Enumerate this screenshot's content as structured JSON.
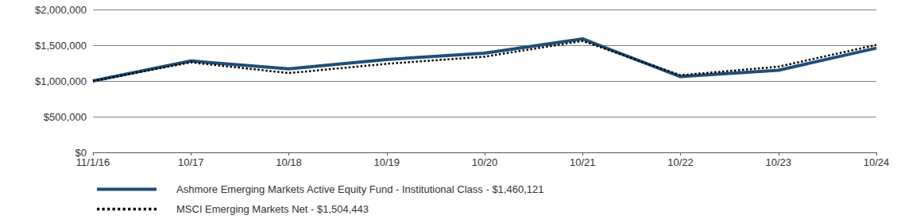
{
  "chart_data": {
    "type": "line",
    "categories": [
      "11/1/16",
      "10/17",
      "10/18",
      "10/19",
      "10/20",
      "10/21",
      "10/22",
      "10/23",
      "10/24"
    ],
    "series": [
      {
        "name": "Ashmore Emerging Markets Active Equity Fund - Institutional Class - $1,460,121",
        "color": "#1f4e79",
        "line_style": "solid",
        "marker": "none",
        "values": [
          1000000,
          1280000,
          1170000,
          1300000,
          1390000,
          1590000,
          1060000,
          1150000,
          1460121
        ]
      },
      {
        "name": "MSCI Emerging Markets Net - $1,504,443",
        "color": "#000000",
        "line_style": "dotted",
        "marker": "none",
        "values": [
          1000000,
          1260000,
          1110000,
          1240000,
          1340000,
          1560000,
          1080000,
          1200000,
          1504443
        ]
      }
    ],
    "ylim": [
      0,
      2000000
    ],
    "yticks": [
      {
        "value": 0,
        "label": "$0"
      },
      {
        "value": 500000,
        "label": "$500,000"
      },
      {
        "value": 1000000,
        "label": "$1,000,000"
      },
      {
        "value": 1500000,
        "label": "$1,500,000"
      },
      {
        "value": 2000000,
        "label": "$2,000,000"
      }
    ],
    "grid": true,
    "legend": "bottom"
  }
}
